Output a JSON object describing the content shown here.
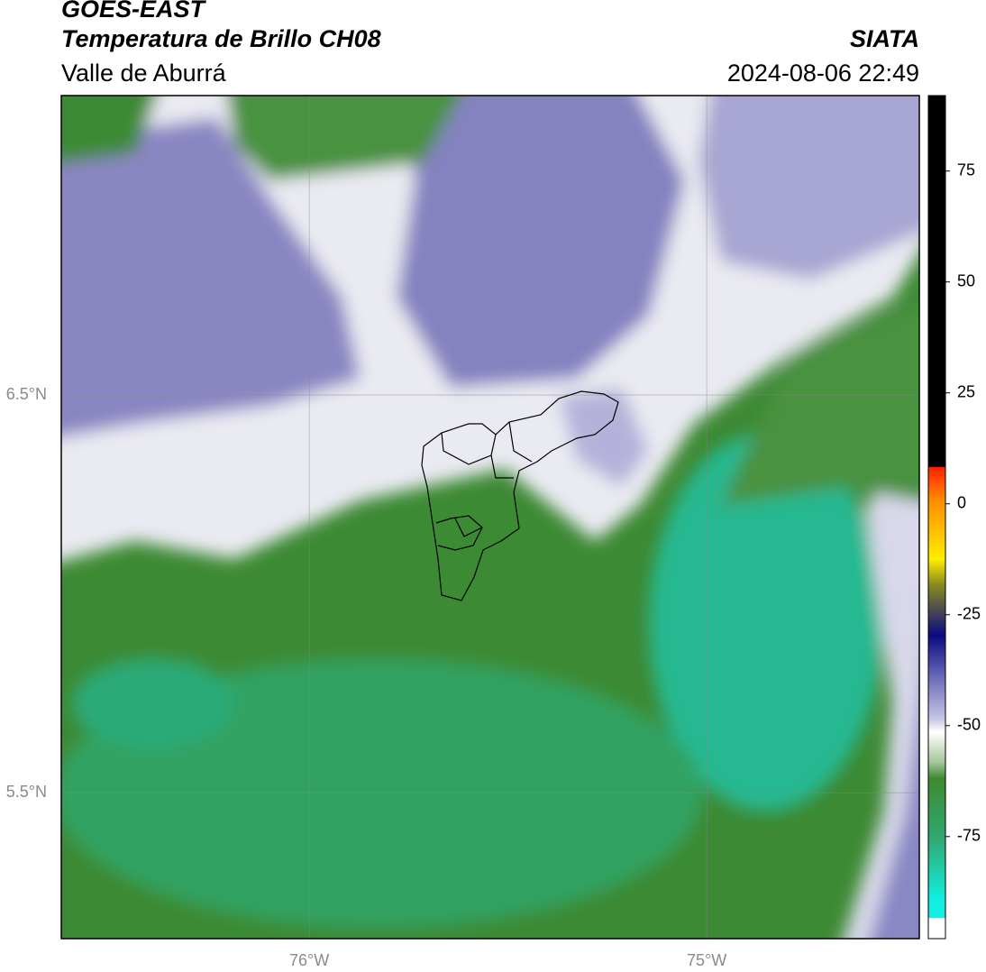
{
  "header": {
    "title": "GOES-EAST",
    "subtitle": "Temperatura de Brillo CH08",
    "region": "Valle de Aburrá",
    "source": "SIATA",
    "timestamp": "2024-08-06 22:49"
  },
  "map": {
    "lonlim": [
      -76.624,
      -74.465
    ],
    "latlim": [
      5.133,
      7.253
    ],
    "lonticks": [
      {
        "value": -76,
        "label": "76°W"
      },
      {
        "value": -75,
        "label": "75°W"
      }
    ],
    "latticks": [
      {
        "value": 6.5,
        "label": "6.5°N"
      },
      {
        "value": 5.5,
        "label": "5.5°N"
      }
    ],
    "grid": true
  },
  "colorbar": {
    "lim": [
      -98,
      92
    ],
    "ticks": [
      75,
      50,
      25,
      0,
      -25,
      -50,
      -75
    ]
  }
}
